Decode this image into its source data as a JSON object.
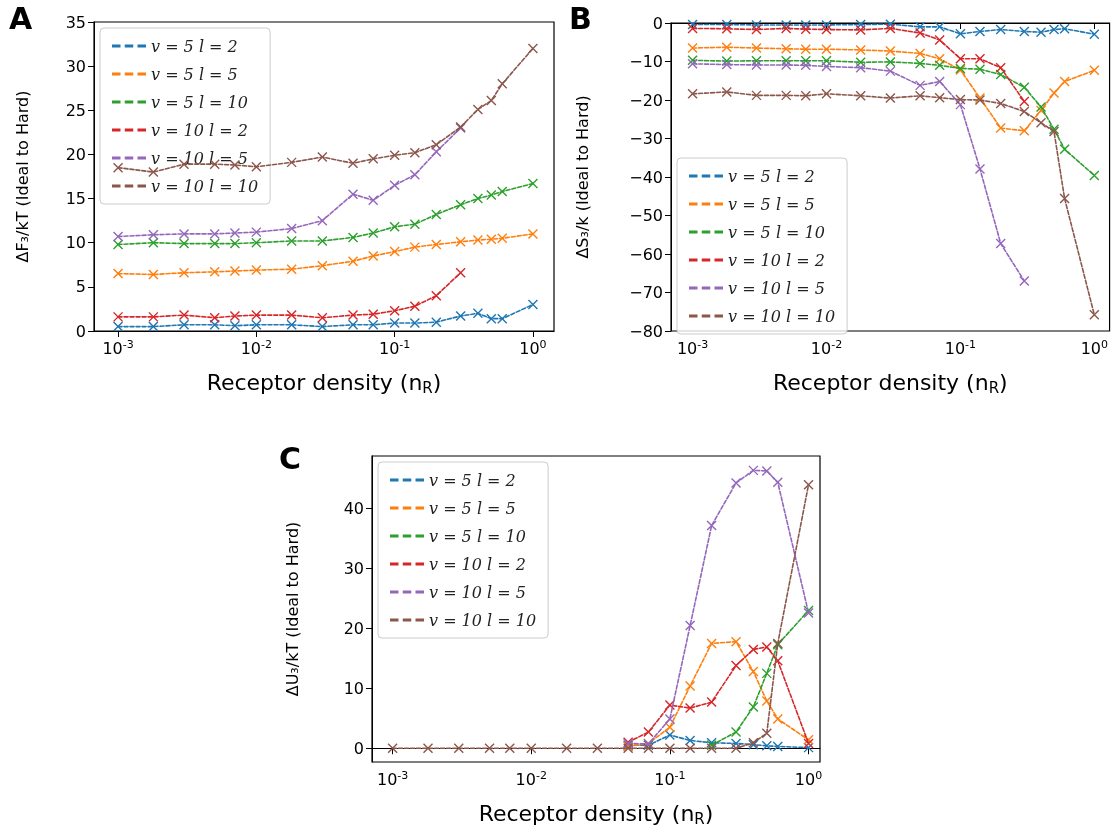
{
  "chart_data": [
    {
      "type": "line",
      "title": "A",
      "xlabel": "Receptor density (n$_{R}$)",
      "ylabel": "ΔF₃/kT (Ideal to Hard)",
      "log": "x",
      "legend": "top left",
      "marker": "cross",
      "line_style": "dashed",
      "xlim": [
        0.00067,
        1.42
      ],
      "ylim": [
        0,
        35
      ],
      "xticks": [
        {
          "value": 0.001,
          "label": "10$^{-3}$"
        },
        {
          "value": 0.01,
          "label": "10$^{-2}$"
        },
        {
          "value": 0.1,
          "label": "10$^{-1}$"
        },
        {
          "value": 1,
          "label": "10$^{0}$"
        }
      ],
      "yticks": [
        0,
        5,
        10,
        15,
        20,
        25,
        30,
        35
      ],
      "x": [
        0.001,
        0.0018,
        0.003,
        0.005,
        0.007,
        0.01,
        0.018,
        0.03,
        0.05,
        0.07,
        0.1,
        0.14,
        0.2,
        0.3,
        0.4,
        0.5,
        0.6,
        1
      ],
      "series": [
        {
          "name": "v = 5 l = 2",
          "color": "#1f77b4",
          "values": [
            0.5,
            0.5,
            0.7,
            0.7,
            0.6,
            0.7,
            0.7,
            0.5,
            0.7,
            0.7,
            0.9,
            0.9,
            1.0,
            1.7,
            2.0,
            1.4,
            1.4,
            3.0
          ]
        },
        {
          "name": "v = 5 l = 5",
          "color": "#ff7f0e",
          "values": [
            6.5,
            6.4,
            6.6,
            6.7,
            6.8,
            6.9,
            7.0,
            7.4,
            7.9,
            8.5,
            9.0,
            9.5,
            9.8,
            10.1,
            10.3,
            10.4,
            10.5,
            11.0
          ]
        },
        {
          "name": "v = 5 l = 10",
          "color": "#2ca02c",
          "values": [
            9.8,
            10.0,
            9.9,
            9.9,
            9.9,
            10.0,
            10.2,
            10.2,
            10.6,
            11.1,
            11.8,
            12.1,
            13.2,
            14.3,
            15.0,
            15.4,
            15.8,
            16.7
          ]
        },
        {
          "name": "v = 10 l = 2",
          "color": "#d62728",
          "values": [
            1.6,
            1.6,
            1.8,
            1.5,
            1.7,
            1.8,
            1.8,
            1.5,
            1.8,
            1.9,
            2.3,
            2.8,
            4.0,
            6.6,
            null,
            null,
            null,
            null
          ]
        },
        {
          "name": "v = 10 l = 5",
          "color": "#9467bd",
          "values": [
            10.7,
            10.9,
            11.0,
            11.0,
            11.1,
            11.2,
            11.6,
            12.5,
            15.5,
            14.8,
            16.5,
            17.7,
            20.3,
            23.0,
            null,
            null,
            null,
            null
          ]
        },
        {
          "name": "v = 10 l = 10",
          "color": "#8c564b",
          "values": [
            18.5,
            18.0,
            18.9,
            18.9,
            18.8,
            18.6,
            19.1,
            19.7,
            19.0,
            19.5,
            19.9,
            20.2,
            21.1,
            23.1,
            25.1,
            26.1,
            28.0,
            32.0
          ]
        }
      ]
    },
    {
      "type": "line",
      "title": "B",
      "xlabel": "Receptor density (n$_{R}$)",
      "ylabel": "ΔS₃/k (Ideal to Hard)",
      "log": "x",
      "legend": "bottom left",
      "marker": "cross",
      "line_style": "dashed",
      "xlim": [
        0.00069,
        1.3
      ],
      "ylim": [
        -80,
        0
      ],
      "xticks": [
        {
          "value": 0.001,
          "label": "10$^{-3}$"
        },
        {
          "value": 0.01,
          "label": "10$^{-2}$"
        },
        {
          "value": 0.1,
          "label": "10$^{-1}$"
        },
        {
          "value": 1,
          "label": "10$^{0}$"
        }
      ],
      "yticks": [
        -80,
        -70,
        -60,
        -50,
        -40,
        -30,
        -20,
        -10,
        0
      ],
      "x": [
        0.001,
        0.0018,
        0.003,
        0.005,
        0.007,
        0.01,
        0.018,
        0.03,
        0.05,
        0.07,
        0.1,
        0.14,
        0.2,
        0.3,
        0.4,
        0.5,
        0.6,
        1
      ],
      "series": [
        {
          "name": "v = 5 l = 2",
          "color": "#1f77b4",
          "values": [
            -0.4,
            -0.4,
            -0.5,
            -0.5,
            -0.5,
            -0.5,
            -0.4,
            -0.3,
            -1.0,
            -1.0,
            -2.8,
            -2.2,
            -1.7,
            -2.2,
            -2.4,
            -1.7,
            -1.5,
            -2.9
          ]
        },
        {
          "name": "v = 5 l = 5",
          "color": "#ff7f0e",
          "values": [
            -6.5,
            -6.3,
            -6.5,
            -6.7,
            -6.8,
            -6.8,
            -7.0,
            -7.3,
            -7.9,
            -9.3,
            -12.2,
            -19.5,
            -27.3,
            -28.0,
            -22.7,
            -18.2,
            -15.2,
            -12.3
          ]
        },
        {
          "name": "v = 5 l = 10",
          "color": "#2ca02c",
          "values": [
            -9.7,
            -9.9,
            -9.8,
            -9.8,
            -9.8,
            -9.8,
            -10.2,
            -10.1,
            -10.5,
            -11.0,
            -11.8,
            -12.0,
            -13.4,
            -16.7,
            -21.8,
            -27.6,
            -32.8,
            -39.6
          ]
        },
        {
          "name": "v = 10 l = 2",
          "color": "#d62728",
          "values": [
            -1.4,
            -1.5,
            -1.7,
            -1.4,
            -1.6,
            -1.7,
            -1.8,
            -1.4,
            -2.6,
            -4.4,
            -9.3,
            -9.3,
            -11.6,
            -20.4,
            null,
            null,
            null,
            null
          ]
        },
        {
          "name": "v = 10 l = 5",
          "color": "#9467bd",
          "values": [
            -10.6,
            -10.8,
            -10.9,
            -10.9,
            -11.0,
            -11.3,
            -11.6,
            -12.5,
            -16.2,
            -15.2,
            -21.2,
            -37.9,
            -57.3,
            -67.0,
            null,
            null,
            null,
            null
          ]
        },
        {
          "name": "v = 10 l = 10",
          "color": "#8c564b",
          "values": [
            -18.4,
            -17.9,
            -18.8,
            -18.8,
            -18.9,
            -18.4,
            -18.9,
            -19.5,
            -18.9,
            -19.4,
            -19.9,
            -20.0,
            -20.9,
            -23.0,
            -25.9,
            -28.2,
            -45.6,
            -75.8
          ]
        }
      ]
    },
    {
      "type": "line",
      "title": "C",
      "xlabel": "Receptor density (n$_{R}$)",
      "ylabel": "ΔU₃/kT (Ideal to Hard)",
      "log": "x",
      "legend": "top left",
      "marker": "cross",
      "line_style": "dashed",
      "xlim": [
        0.00071,
        1.21
      ],
      "ylim": [
        -2.3,
        48.8
      ],
      "xticks": [
        {
          "value": 0.001,
          "label": "10$^{-3}$"
        },
        {
          "value": 0.01,
          "label": "10$^{-2}$"
        },
        {
          "value": 0.1,
          "label": "10$^{-1}$"
        },
        {
          "value": 1,
          "label": "10$^{0}$"
        }
      ],
      "yticks": [
        0,
        10,
        20,
        30,
        40
      ],
      "x": [
        0.001,
        0.0018,
        0.003,
        0.005,
        0.007,
        0.01,
        0.018,
        0.03,
        0.05,
        0.07,
        0.1,
        0.14,
        0.2,
        0.3,
        0.4,
        0.5,
        0.6,
        1
      ],
      "series": [
        {
          "name": "v = 5 l = 2",
          "color": "#1f77b4",
          "values": [
            null,
            null,
            null,
            null,
            null,
            null,
            null,
            null,
            0.5,
            0.5,
            2.2,
            1.3,
            0.9,
            0.8,
            0.6,
            0.4,
            0.3,
            0.1
          ]
        },
        {
          "name": "v = 5 l = 5",
          "color": "#ff7f0e",
          "values": [
            null,
            null,
            null,
            null,
            null,
            null,
            null,
            null,
            0.3,
            0.8,
            3.5,
            10.4,
            17.5,
            17.8,
            12.8,
            7.9,
            4.9,
            1.4
          ]
        },
        {
          "name": "v = 5 l = 10",
          "color": "#2ca02c",
          "values": [
            null,
            null,
            null,
            null,
            null,
            null,
            null,
            null,
            null,
            null,
            null,
            null,
            0.5,
            2.7,
            6.9,
            12.5,
            17.3,
            23.0
          ]
        },
        {
          "name": "v = 10 l = 2",
          "color": "#d62728",
          "values": [
            null,
            null,
            null,
            null,
            null,
            null,
            null,
            null,
            1.0,
            2.7,
            7.2,
            6.7,
            7.7,
            13.8,
            16.5,
            16.9,
            14.6,
            0.8
          ]
        },
        {
          "name": "v = 10 l = 5",
          "color": "#9467bd",
          "values": [
            null,
            null,
            null,
            null,
            null,
            null,
            null,
            null,
            0.8,
            0.7,
            4.9,
            20.5,
            37.2,
            44.3,
            46.4,
            46.3,
            44.4,
            22.6
          ]
        },
        {
          "name": "v = 10 l = 10",
          "color": "#8c564b",
          "values": [
            0,
            0,
            0,
            0,
            0,
            0,
            0,
            0,
            0,
            0,
            0,
            0,
            0,
            0,
            0.9,
            2.5,
            17.5,
            44.0
          ]
        }
      ]
    }
  ]
}
